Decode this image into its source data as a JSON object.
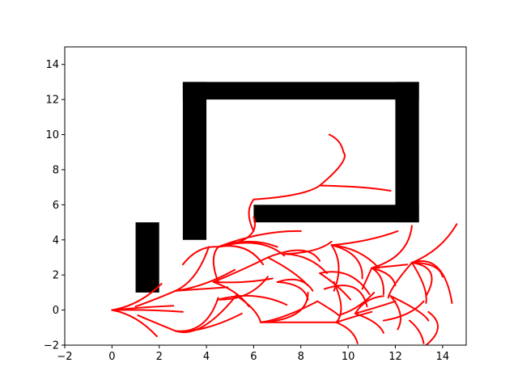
{
  "chart_data": {
    "type": "line",
    "title": "",
    "xlabel": "",
    "ylabel": "",
    "xlim": [
      -2,
      15
    ],
    "ylim": [
      -2,
      15
    ],
    "grid": false,
    "x_ticks": [
      -2,
      0,
      2,
      4,
      6,
      8,
      10,
      12,
      14
    ],
    "y_ticks": [
      -2,
      0,
      2,
      4,
      6,
      8,
      10,
      12,
      14
    ],
    "colors": {
      "obstacle": "#000000",
      "path": "#ff0000",
      "axes": "#000000",
      "background": "#ffffff"
    },
    "obstacles": [
      {
        "x": 1.0,
        "y": 1.0,
        "width": 1.0,
        "height": 4.0
      },
      {
        "x": 3.0,
        "y": 4.0,
        "width": 1.0,
        "height": 9.0
      },
      {
        "x": 3.0,
        "y": 12.0,
        "width": 10.0,
        "height": 1.0
      },
      {
        "x": 12.0,
        "y": 5.0,
        "width": 1.0,
        "height": 8.0
      },
      {
        "x": 6.0,
        "y": 5.0,
        "width": 7.0,
        "height": 1.0
      }
    ],
    "series": [
      {
        "x": [
          0.0,
          1.1,
          2.1
        ],
        "y": [
          0.0,
          0.5,
          1.5
        ]
      },
      {
        "x": [
          0.0,
          1.3,
          2.6
        ],
        "y": [
          0.0,
          0.15,
          0.25
        ]
      },
      {
        "x": [
          0.0,
          1.5,
          3.0
        ],
        "y": [
          0.0,
          0.0,
          -0.1
        ]
      },
      {
        "x": [
          0.0,
          1.0,
          1.9
        ],
        "y": [
          0.0,
          -0.5,
          -1.5
        ]
      },
      {
        "x": [
          2.7,
          3.8,
          4.9
        ],
        "y": [
          1.1,
          1.2,
          1.3
        ]
      },
      {
        "x": [
          2.7,
          3.9,
          5.2
        ],
        "y": [
          1.1,
          1.5,
          2.3
        ]
      },
      {
        "x": [
          2.7,
          3.5,
          4.1
        ],
        "y": [
          1.1,
          2.0,
          3.6
        ]
      },
      {
        "x": [
          2.7,
          4.0,
          5.5
        ],
        "y": [
          -1.2,
          -1.0,
          -0.2
        ]
      },
      {
        "x": [
          2.7,
          3.9,
          5.3
        ],
        "y": [
          -1.2,
          -0.9,
          0.9
        ]
      },
      {
        "x": [
          2.7,
          3.8,
          4.5
        ],
        "y": [
          -1.2,
          -0.8,
          0.7
        ]
      },
      {
        "x": [
          2.7,
          1.8,
          1.0
        ],
        "y": [
          1.1,
          0.6,
          0.2
        ]
      },
      {
        "x": [
          2.7,
          1.8,
          1.1
        ],
        "y": [
          -1.2,
          -0.7,
          -0.3
        ]
      },
      {
        "x": [
          4.5,
          5.8,
          7.0
        ],
        "y": [
          3.6,
          3.9,
          3.6
        ]
      },
      {
        "x": [
          4.5,
          5.6,
          6.4
        ],
        "y": [
          3.6,
          3.5,
          2.6
        ]
      },
      {
        "x": [
          4.5,
          4.3,
          4.5
        ],
        "y": [
          3.6,
          2.8,
          1.6
        ]
      },
      {
        "x": [
          4.5,
          3.7,
          3.0
        ],
        "y": [
          3.6,
          3.4,
          2.6
        ]
      },
      {
        "x": [
          4.5,
          6.3,
          8.0
        ],
        "y": [
          3.6,
          4.3,
          4.5
        ]
      },
      {
        "x": [
          4.5,
          6.1,
          7.3
        ],
        "y": [
          3.6,
          3.8,
          3.1
        ]
      },
      {
        "x": [
          4.5,
          5.8,
          6.0
        ],
        "y": [
          3.6,
          4.2,
          5.3
        ]
      },
      {
        "x": [
          6.0,
          5.8,
          6.0
        ],
        "y": [
          4.5,
          5.5,
          6.3
        ]
      },
      {
        "x": [
          6.0,
          7.8,
          8.8
        ],
        "y": [
          6.3,
          6.6,
          7.1
        ]
      },
      {
        "x": [
          8.8,
          10.5,
          11.8
        ],
        "y": [
          7.1,
          7.0,
          6.8
        ]
      },
      {
        "x": [
          8.8,
          9.7,
          9.8
        ],
        "y": [
          7.1,
          8.3,
          9.0
        ]
      },
      {
        "x": [
          9.8,
          9.6,
          9.2
        ],
        "y": [
          9.0,
          9.6,
          10.0
        ]
      },
      {
        "x": [
          4.3,
          5.5,
          6.6
        ],
        "y": [
          1.6,
          2.3,
          3.0
        ]
      },
      {
        "x": [
          4.3,
          5.6,
          6.8
        ],
        "y": [
          1.6,
          1.6,
          1.8
        ]
      },
      {
        "x": [
          4.3,
          5.2,
          5.8
        ],
        "y": [
          1.6,
          1.0,
          0.2
        ]
      },
      {
        "x": [
          4.5,
          6.0,
          7.4
        ],
        "y": [
          0.6,
          0.8,
          0.3
        ]
      },
      {
        "x": [
          4.5,
          5.7,
          6.6
        ],
        "y": [
          0.6,
          0.9,
          1.9
        ]
      },
      {
        "x": [
          6.3,
          7.8,
          8.3
        ],
        "y": [
          -0.7,
          -0.2,
          1.0
        ]
      },
      {
        "x": [
          6.3,
          8.4,
          9.5
        ],
        "y": [
          -0.7,
          -0.7,
          -0.7
        ]
      },
      {
        "x": [
          6.3,
          6.0,
          5.4
        ],
        "y": [
          -0.7,
          0.0,
          0.7
        ]
      },
      {
        "x": [
          6.3,
          7.4,
          8.7
        ],
        "y": [
          -0.7,
          -0.3,
          0.5
        ]
      },
      {
        "x": [
          6.6,
          8.0,
          8.8
        ],
        "y": [
          3.0,
          3.4,
          2.8
        ]
      },
      {
        "x": [
          6.6,
          7.6,
          8.3
        ],
        "y": [
          3.0,
          2.2,
          1.4
        ]
      },
      {
        "x": [
          7.3,
          8.3,
          9.1
        ],
        "y": [
          3.2,
          2.9,
          2.1
        ]
      },
      {
        "x": [
          7.3,
          8.5,
          9.3
        ],
        "y": [
          3.2,
          3.4,
          3.9
        ]
      },
      {
        "x": [
          7.0,
          7.9,
          8.5
        ],
        "y": [
          1.6,
          1.7,
          1.1
        ]
      },
      {
        "x": [
          7.0,
          7.9,
          8.3
        ],
        "y": [
          1.6,
          1.3,
          0.6
        ]
      },
      {
        "x": [
          9.3,
          10.4,
          11.3
        ],
        "y": [
          3.7,
          3.3,
          2.4
        ]
      },
      {
        "x": [
          9.3,
          10.8,
          12.1
        ],
        "y": [
          3.7,
          4.0,
          4.5
        ]
      },
      {
        "x": [
          9.3,
          10.3,
          10.6
        ],
        "y": [
          3.7,
          3.0,
          1.8
        ]
      },
      {
        "x": [
          9.3,
          9.6,
          9.4
        ],
        "y": [
          3.7,
          2.5,
          1.1
        ]
      },
      {
        "x": [
          8.8,
          10.0,
          10.9
        ],
        "y": [
          2.1,
          2.0,
          0.9
        ]
      },
      {
        "x": [
          8.8,
          9.5,
          10.1
        ],
        "y": [
          2.1,
          1.4,
          0.6
        ]
      },
      {
        "x": [
          9.0,
          10.2,
          10.8
        ],
        "y": [
          1.2,
          1.3,
          0.2
        ]
      },
      {
        "x": [
          9.5,
          10.2,
          11.0
        ],
        "y": [
          -0.7,
          -0.4,
          -0.1
        ]
      },
      {
        "x": [
          9.5,
          10.1,
          10.4
        ],
        "y": [
          -0.7,
          -1.2,
          -1.9
        ]
      },
      {
        "x": [
          9.5,
          9.7,
          9.4
        ],
        "y": [
          -0.7,
          0.2,
          1.6
        ]
      },
      {
        "x": [
          8.7,
          9.3,
          9.6
        ],
        "y": [
          0.5,
          0.0,
          -0.3
        ]
      },
      {
        "x": [
          9.6,
          10.4,
          11.1
        ],
        "y": [
          -0.3,
          0.2,
          1.0
        ]
      },
      {
        "x": [
          10.3,
          11.3,
          12.0
        ],
        "y": [
          -0.2,
          0.2,
          0.5
        ]
      },
      {
        "x": [
          10.3,
          10.8,
          11.5
        ],
        "y": [
          -0.2,
          0.5,
          0.8
        ]
      },
      {
        "x": [
          10.3,
          11.1,
          11.5
        ],
        "y": [
          -0.2,
          -0.7,
          -1.3
        ]
      },
      {
        "x": [
          11.0,
          11.7,
          12.0
        ],
        "y": [
          2.4,
          2.0,
          1.4
        ]
      },
      {
        "x": [
          11.0,
          11.8,
          12.5
        ],
        "y": [
          2.4,
          2.5,
          2.6
        ]
      },
      {
        "x": [
          11.0,
          11.4,
          11.5
        ],
        "y": [
          2.4,
          1.8,
          0.9
        ]
      },
      {
        "x": [
          11.0,
          10.8,
          10.6
        ],
        "y": [
          2.4,
          1.8,
          1.2
        ]
      },
      {
        "x": [
          11.0,
          12.2,
          12.7
        ],
        "y": [
          2.4,
          3.3,
          4.8
        ]
      },
      {
        "x": [
          12.7,
          13.6,
          14.0
        ],
        "y": [
          2.7,
          2.5,
          1.9
        ]
      },
      {
        "x": [
          12.7,
          13.8,
          14.4
        ],
        "y": [
          2.7,
          2.4,
          0.4
        ]
      },
      {
        "x": [
          12.7,
          13.8,
          14.6
        ],
        "y": [
          2.7,
          3.6,
          4.9
        ]
      },
      {
        "x": [
          12.7,
          13.5,
          13.3
        ],
        "y": [
          2.7,
          2.1,
          0.8
        ]
      },
      {
        "x": [
          12.7,
          13.2,
          13.3
        ],
        "y": [
          2.7,
          1.4,
          0.4
        ]
      },
      {
        "x": [
          12.7,
          12.0,
          11.7
        ],
        "y": [
          2.7,
          1.5,
          0.7
        ]
      },
      {
        "x": [
          11.8,
          12.9,
          13.4
        ],
        "y": [
          0.8,
          0.0,
          -0.6
        ]
      },
      {
        "x": [
          11.8,
          12.2,
          12.1
        ],
        "y": [
          0.8,
          -0.2,
          -1.1
        ]
      },
      {
        "x": [
          13.4,
          13.8,
          13.3
        ],
        "y": [
          -0.1,
          -1.0,
          -2.0
        ]
      },
      {
        "x": [
          12.6,
          13.0,
          13.2
        ],
        "y": [
          -0.6,
          -1.2,
          -1.9
        ]
      },
      {
        "x": [
          11.5,
          12.5,
          13.2
        ],
        "y": [
          -0.6,
          -0.2,
          0.5
        ]
      }
    ]
  }
}
